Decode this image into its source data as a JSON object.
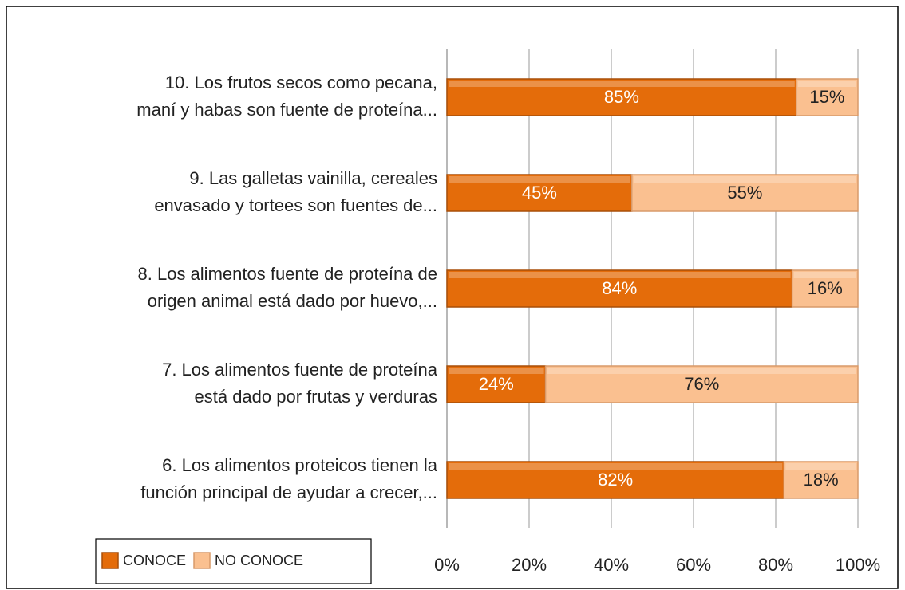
{
  "chart_data": {
    "type": "stacked-bar-horizontal",
    "categories": [
      "10. Los frutos secos como pecana,\nmaní y habas son fuente de proteína...",
      "9. Las galletas vainilla, cereales\nenvasado y tortees son fuentes de...",
      "8. Los alimentos fuente de  proteína de\norigen animal  está dado por huevo,...",
      "7. Los alimentos fuente de  proteína\nestá dado por frutas y verduras",
      "6. Los alimentos proteicos tienen la\nfunción principal de ayudar a crecer,..."
    ],
    "series": [
      {
        "name": "CONOCE",
        "color": "#e46c0a",
        "values": [
          85,
          45,
          84,
          24,
          82
        ],
        "value_labels": [
          "85%",
          "45%",
          "84%",
          "24%",
          "82%"
        ]
      },
      {
        "name": "NO CONOCE",
        "color": "#fac090",
        "values": [
          15,
          55,
          16,
          76,
          18
        ],
        "value_labels": [
          "15%",
          "55%",
          "16%",
          "76%",
          "18%"
        ]
      }
    ],
    "xlim": [
      0,
      100
    ],
    "xticks": [
      {
        "value": 0,
        "label": "0%"
      },
      {
        "value": 20,
        "label": "20%"
      },
      {
        "value": 40,
        "label": "40%"
      },
      {
        "value": 60,
        "label": "60%"
      },
      {
        "value": 80,
        "label": "80%"
      },
      {
        "value": 100,
        "label": "100%"
      }
    ],
    "grid": true,
    "legend": "bottom-left"
  }
}
